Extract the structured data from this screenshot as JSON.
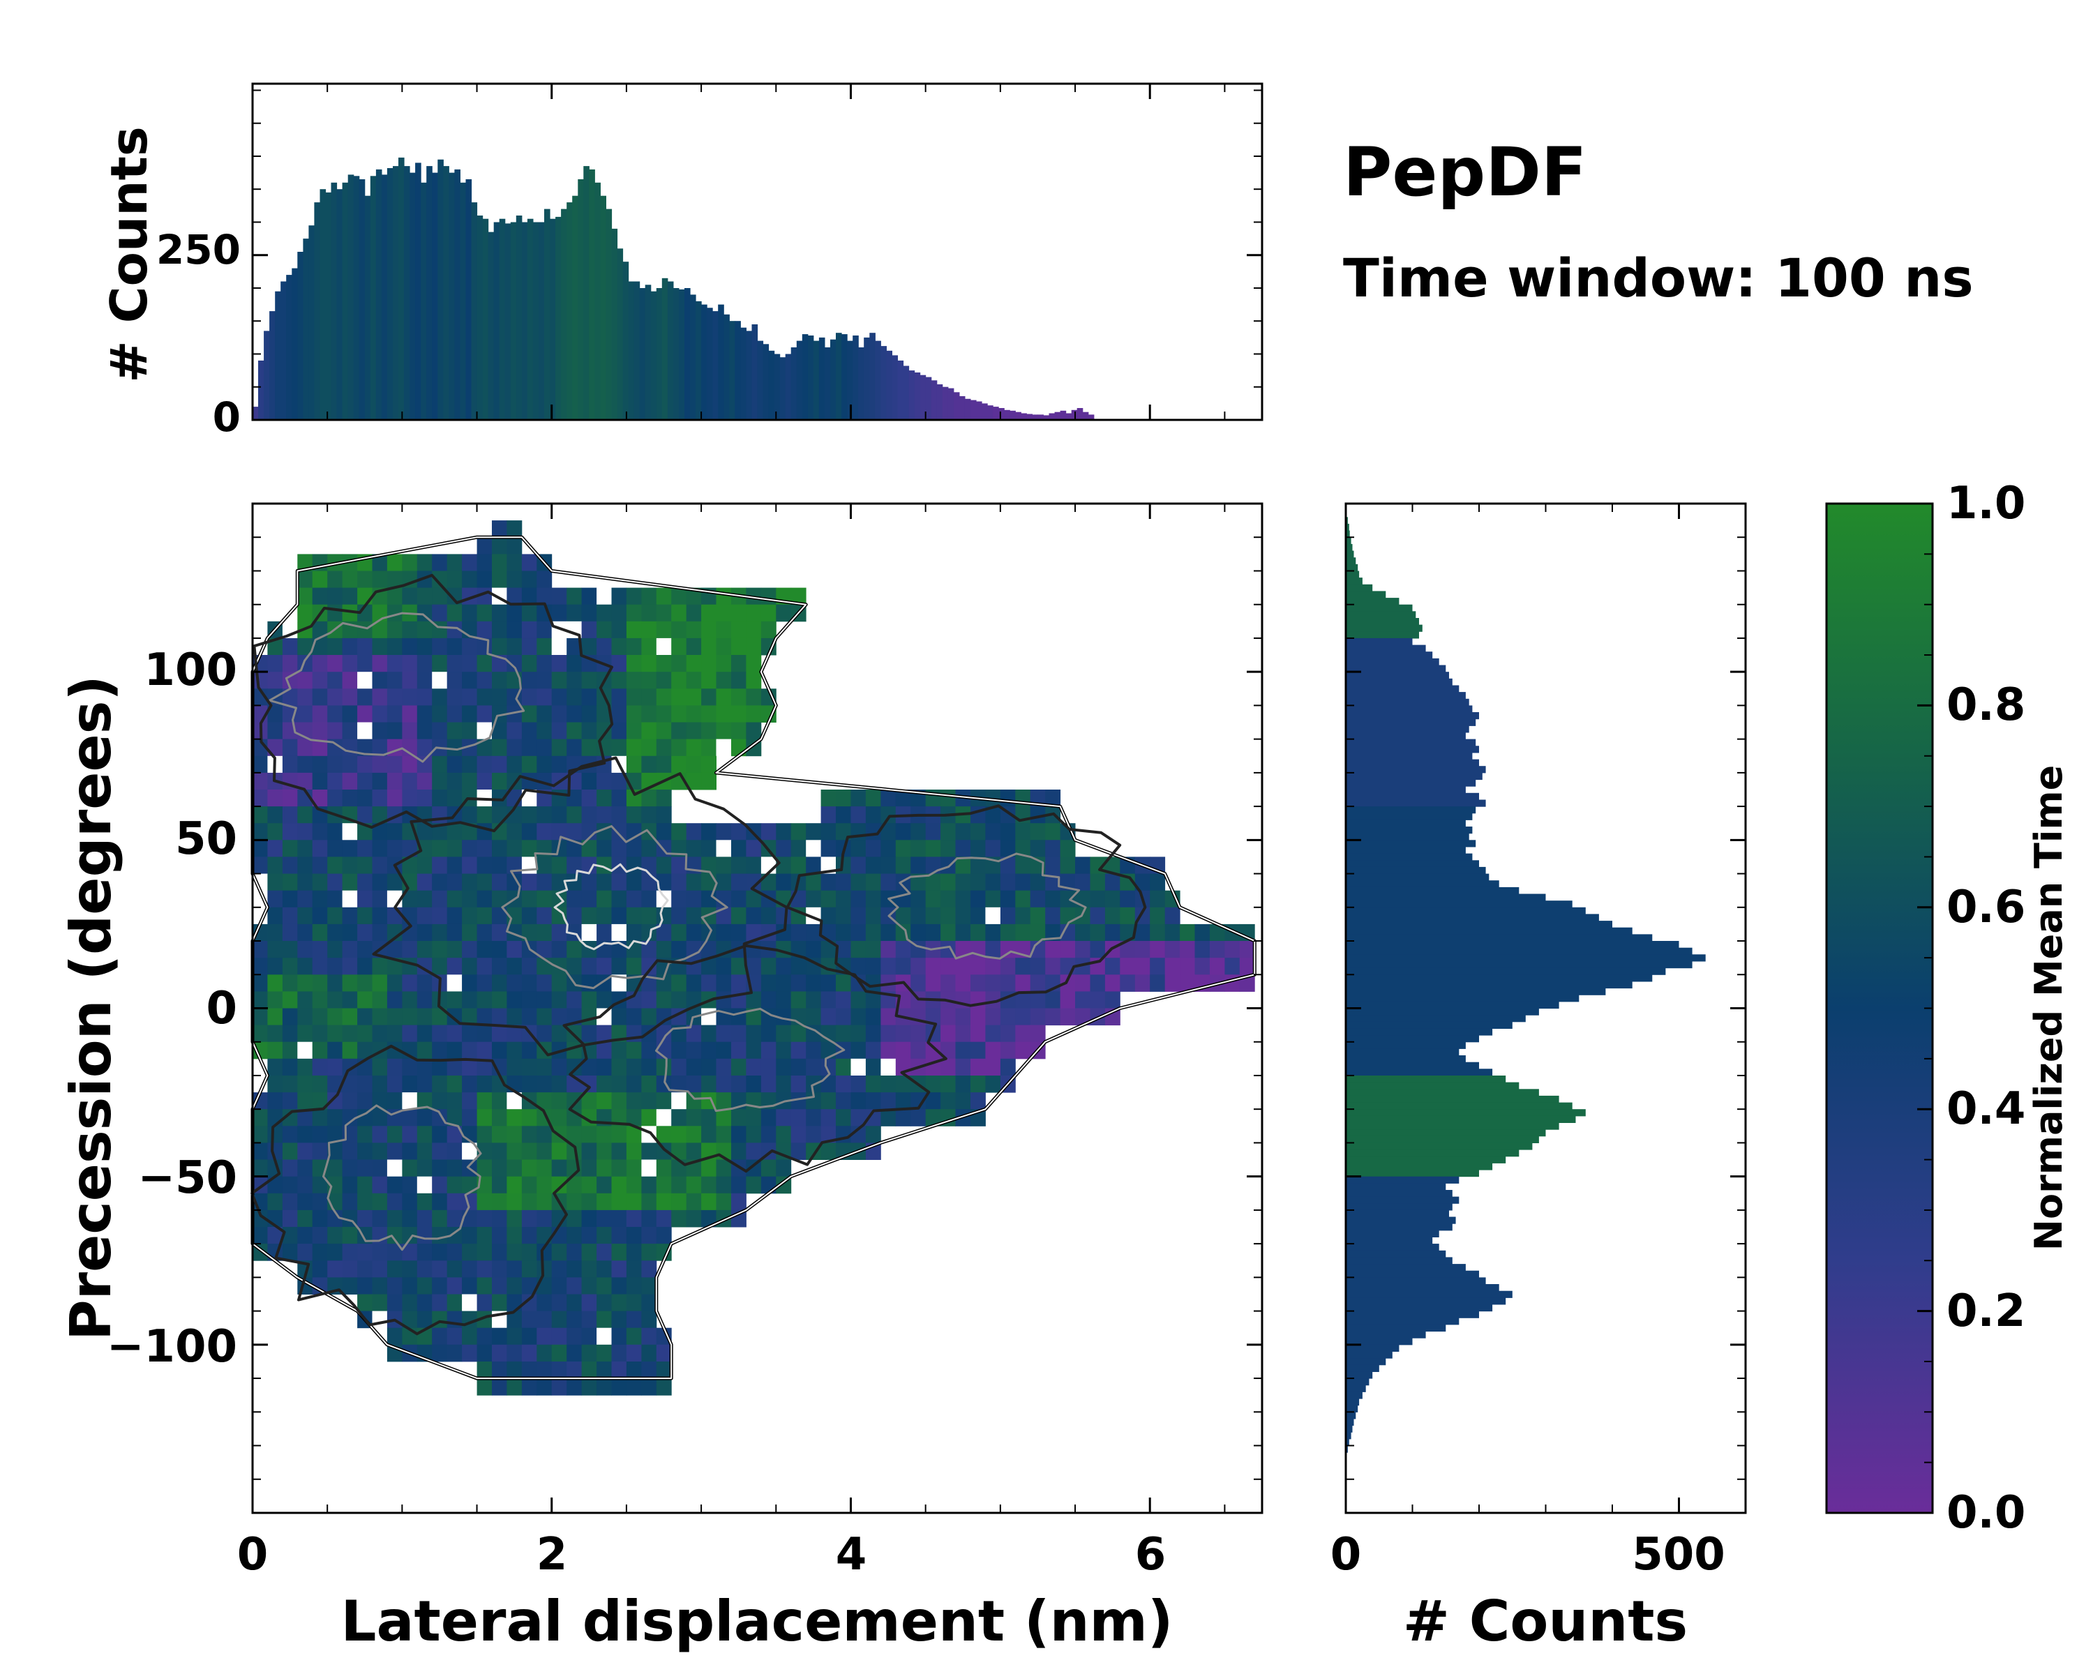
{
  "title": "PepDF",
  "subtitle": "Time window: 100 ns",
  "chart_data": [
    {
      "id": "top-histogram",
      "type": "bar",
      "ylabel": "# Counts",
      "xlim": [
        0,
        6.75
      ],
      "ylim": [
        0,
        510
      ],
      "yticks": [
        0,
        250
      ],
      "x_bin_width": 0.0375,
      "values": [
        20,
        90,
        135,
        165,
        195,
        210,
        220,
        230,
        255,
        275,
        295,
        330,
        350,
        345,
        360,
        350,
        360,
        372,
        370,
        365,
        340,
        370,
        380,
        372,
        382,
        385,
        398,
        385,
        375,
        390,
        360,
        385,
        375,
        395,
        385,
        375,
        380,
        360,
        365,
        330,
        310,
        305,
        285,
        300,
        305,
        298,
        300,
        310,
        300,
        305,
        300,
        300,
        320,
        305,
        308,
        320,
        330,
        340,
        365,
        385,
        380,
        360,
        340,
        320,
        290,
        260,
        240,
        210,
        210,
        200,
        205,
        195,
        200,
        215,
        210,
        200,
        198,
        200,
        190,
        180,
        175,
        170,
        165,
        175,
        160,
        150,
        150,
        140,
        135,
        145,
        120,
        115,
        105,
        100,
        95,
        100,
        110,
        120,
        130,
        128,
        120,
        125,
        110,
        122,
        132,
        130,
        120,
        128,
        110,
        125,
        132,
        120,
        112,
        105,
        98,
        90,
        82,
        75,
        72,
        68,
        65,
        60,
        54,
        50,
        48,
        42,
        36,
        32,
        30,
        28,
        25,
        22,
        20,
        18,
        15,
        14,
        12,
        10,
        9,
        8,
        8,
        7,
        10,
        12,
        14,
        10,
        15,
        18,
        12,
        8
      ],
      "color_fraction": [
        0.2,
        0.3,
        0.35,
        0.4,
        0.45,
        0.45,
        0.48,
        0.5,
        0.52,
        0.55,
        0.55,
        0.58,
        0.6,
        0.6,
        0.58,
        0.55,
        0.6,
        0.58,
        0.55,
        0.52,
        0.55,
        0.6,
        0.55,
        0.52,
        0.55,
        0.58,
        0.6,
        0.55,
        0.52,
        0.5,
        0.55,
        0.52,
        0.5,
        0.55,
        0.58,
        0.55,
        0.52,
        0.55,
        0.5,
        0.58,
        0.6,
        0.62,
        0.58,
        0.55,
        0.6,
        0.58,
        0.62,
        0.6,
        0.58,
        0.62,
        0.6,
        0.58,
        0.62,
        0.6,
        0.65,
        0.68,
        0.7,
        0.72,
        0.7,
        0.68,
        0.72,
        0.7,
        0.72,
        0.7,
        0.68,
        0.65,
        0.62,
        0.6,
        0.58,
        0.55,
        0.58,
        0.6,
        0.62,
        0.65,
        0.6,
        0.58,
        0.55,
        0.5,
        0.52,
        0.55,
        0.5,
        0.48,
        0.45,
        0.5,
        0.52,
        0.55,
        0.5,
        0.48,
        0.45,
        0.42,
        0.45,
        0.48,
        0.5,
        0.48,
        0.45,
        0.42,
        0.45,
        0.48,
        0.5,
        0.52,
        0.55,
        0.5,
        0.48,
        0.52,
        0.55,
        0.5,
        0.48,
        0.45,
        0.42,
        0.4,
        0.38,
        0.35,
        0.32,
        0.3,
        0.28,
        0.25,
        0.25,
        0.22,
        0.2,
        0.18,
        0.18,
        0.15,
        0.15,
        0.12,
        0.12,
        0.1,
        0.1,
        0.1,
        0.08,
        0.08,
        0.08,
        0.08,
        0.06,
        0.06,
        0.06,
        0.06,
        0.05,
        0.05,
        0.05,
        0.05,
        0.05,
        0.05,
        0.05,
        0.05,
        0.05,
        0.05,
        0.05,
        0.05,
        0.05,
        0.05
      ]
    },
    {
      "id": "joint-heatmap",
      "type": "heatmap",
      "xlabel": "Lateral displacement (nm)",
      "ylabel": "Precession (degrees)",
      "xlim": [
        0,
        6.75
      ],
      "ylim": [
        -150,
        150
      ],
      "xticks": [
        0,
        2,
        4,
        6
      ],
      "yticks": [
        -100,
        -50,
        0,
        50,
        100
      ],
      "colorbar_label": "Normalized Mean Time",
      "colorbar_ticks": [
        0.0,
        0.2,
        0.4,
        0.6,
        0.8,
        1.0
      ],
      "colors": {
        "low": "#6a2d9a",
        "mid": "#0b3f6e",
        "high": "#228a2b"
      },
      "region_rows": [
        {
          "y": 140,
          "ranges": [
            [
              1.5,
              1.8
            ]
          ]
        },
        {
          "y": 130,
          "ranges": [
            [
              0.3,
              2.0
            ]
          ]
        },
        {
          "y": 120,
          "ranges": [
            [
              0.3,
              3.7
            ]
          ]
        },
        {
          "y": 110,
          "ranges": [
            [
              0.1,
              3.5
            ]
          ]
        },
        {
          "y": 100,
          "ranges": [
            [
              0.0,
              3.4
            ]
          ]
        },
        {
          "y": 90,
          "ranges": [
            [
              0.0,
              3.5
            ]
          ]
        },
        {
          "y": 80,
          "ranges": [
            [
              0.0,
              3.4
            ]
          ]
        },
        {
          "y": 70,
          "ranges": [
            [
              0.0,
              3.1
            ]
          ]
        },
        {
          "y": 60,
          "ranges": [
            [
              0.0,
              2.8
            ],
            [
              3.8,
              5.4
            ]
          ]
        },
        {
          "y": 50,
          "ranges": [
            [
              0.0,
              5.5
            ]
          ]
        },
        {
          "y": 40,
          "ranges": [
            [
              0.0,
              6.1
            ]
          ]
        },
        {
          "y": 30,
          "ranges": [
            [
              0.1,
              6.2
            ]
          ]
        },
        {
          "y": 20,
          "ranges": [
            [
              0.0,
              6.7
            ]
          ]
        },
        {
          "y": 10,
          "ranges": [
            [
              0.0,
              6.7
            ]
          ]
        },
        {
          "y": 0,
          "ranges": [
            [
              0.0,
              5.8
            ]
          ]
        },
        {
          "y": -10,
          "ranges": [
            [
              0.0,
              5.3
            ]
          ]
        },
        {
          "y": -20,
          "ranges": [
            [
              0.1,
              5.1
            ]
          ]
        },
        {
          "y": -30,
          "ranges": [
            [
              0.0,
              4.9
            ]
          ]
        },
        {
          "y": -40,
          "ranges": [
            [
              0.0,
              4.2
            ]
          ]
        },
        {
          "y": -50,
          "ranges": [
            [
              0.0,
              3.6
            ]
          ]
        },
        {
          "y": -60,
          "ranges": [
            [
              0.0,
              3.3
            ]
          ]
        },
        {
          "y": -70,
          "ranges": [
            [
              0.0,
              2.8
            ]
          ]
        },
        {
          "y": -80,
          "ranges": [
            [
              0.3,
              2.7
            ]
          ]
        },
        {
          "y": -90,
          "ranges": [
            [
              0.7,
              2.7
            ]
          ]
        },
        {
          "y": -100,
          "ranges": [
            [
              0.9,
              2.8
            ]
          ]
        },
        {
          "y": -110,
          "ranges": [
            [
              1.5,
              2.8
            ]
          ]
        }
      ]
    },
    {
      "id": "side-histogram",
      "type": "bar",
      "orientation": "horizontal",
      "xlabel": "# Counts",
      "xlim": [
        0,
        600
      ],
      "xticks": [
        0,
        500
      ],
      "ylim": [
        -150,
        150
      ],
      "y_bin_width": 2,
      "y_start": 146,
      "values": [
        3,
        5,
        6,
        8,
        10,
        12,
        15,
        18,
        20,
        25,
        40,
        60,
        80,
        100,
        105,
        110,
        115,
        110,
        100,
        120,
        130,
        140,
        150,
        155,
        160,
        170,
        180,
        185,
        190,
        200,
        195,
        185,
        180,
        195,
        200,
        190,
        200,
        210,
        205,
        195,
        180,
        200,
        210,
        195,
        190,
        180,
        190,
        185,
        195,
        180,
        190,
        200,
        210,
        215,
        230,
        260,
        300,
        340,
        360,
        380,
        400,
        430,
        460,
        500,
        520,
        540,
        520,
        480,
        460,
        430,
        390,
        350,
        320,
        290,
        270,
        250,
        220,
        200,
        180,
        170,
        180,
        200,
        220,
        240,
        260,
        290,
        320,
        340,
        360,
        345,
        320,
        300,
        290,
        280,
        260,
        240,
        220,
        200,
        170,
        150,
        160,
        170,
        160,
        155,
        165,
        160,
        140,
        130,
        140,
        150,
        160,
        180,
        200,
        210,
        230,
        250,
        240,
        220,
        200,
        170,
        150,
        120,
        100,
        80,
        70,
        60,
        50,
        40,
        35,
        30,
        25,
        20,
        18,
        15,
        12,
        10,
        8,
        5,
        3
      ]
    }
  ]
}
